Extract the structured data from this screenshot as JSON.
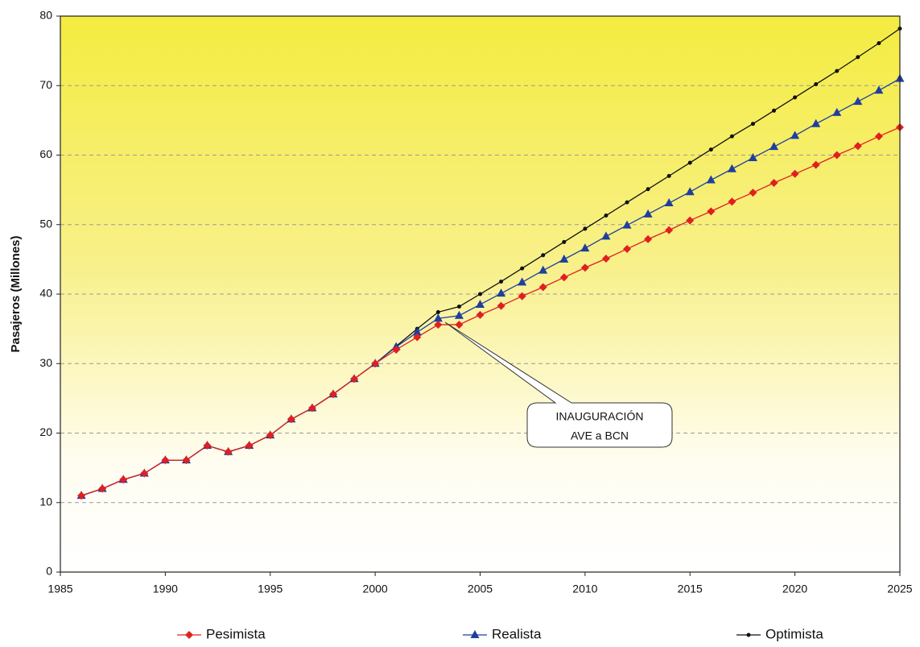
{
  "chart_data": {
    "type": "line",
    "y_label": "Pasajeros (Millones)",
    "annotation": [
      "INAUGURACIÓN",
      "AVE a BCN"
    ],
    "x": [
      1986,
      1987,
      1988,
      1989,
      1990,
      1991,
      1992,
      1993,
      1994,
      1995,
      1996,
      1997,
      1998,
      1999,
      2000,
      2001,
      2002,
      2003,
      2004,
      2005,
      2006,
      2007,
      2008,
      2009,
      2010,
      2011,
      2012,
      2013,
      2014,
      2015,
      2016,
      2017,
      2018,
      2019,
      2020,
      2021,
      2022,
      2023,
      2024,
      2025
    ],
    "xlim": [
      1985,
      2025
    ],
    "xticks": [
      1985,
      1990,
      1995,
      2000,
      2005,
      2010,
      2015,
      2020,
      2025
    ],
    "ylim": [
      0,
      80
    ],
    "yticks": [
      0,
      10,
      20,
      30,
      40,
      50,
      60,
      70,
      80
    ],
    "grid": true,
    "series": [
      {
        "name": "Optimista",
        "color": "#111111",
        "marker": "dot",
        "values": [
          11,
          12,
          13.3,
          14.2,
          16.1,
          16.1,
          18.2,
          17.3,
          18.2,
          19.7,
          22,
          23.6,
          25.6,
          27.8,
          30,
          32.5,
          35,
          37.4,
          38.2,
          40.0,
          41.8,
          43.7,
          45.6,
          47.5,
          49.4,
          51.3,
          53.2,
          55.1,
          57.0,
          58.9,
          60.8,
          62.7,
          64.5,
          66.4,
          68.3,
          70.2,
          72.1,
          74.1,
          76.1,
          78.2
        ]
      },
      {
        "name": "Realista",
        "color": "#1f3f9f",
        "marker": "triangle",
        "values": [
          11,
          12,
          13.3,
          14.2,
          16.1,
          16.1,
          18.2,
          17.3,
          18.2,
          19.7,
          22,
          23.6,
          25.6,
          27.8,
          30,
          32.4,
          34.5,
          36.5,
          36.9,
          38.5,
          40.1,
          41.7,
          43.4,
          45.0,
          46.6,
          48.3,
          49.9,
          51.5,
          53.1,
          54.7,
          56.4,
          58.0,
          59.6,
          61.2,
          62.8,
          64.5,
          66.1,
          67.7,
          69.3,
          71.0
        ]
      },
      {
        "name": "Pesimista",
        "color": "#e02020",
        "marker": "diamond",
        "values": [
          11,
          12,
          13.3,
          14.2,
          16.1,
          16.1,
          18.2,
          17.3,
          18.2,
          19.7,
          22,
          23.6,
          25.6,
          27.8,
          30,
          32,
          33.8,
          35.6,
          35.6,
          37.0,
          38.3,
          39.7,
          41.0,
          42.4,
          43.8,
          45.1,
          46.5,
          47.9,
          49.2,
          50.6,
          51.9,
          53.3,
          54.6,
          56.0,
          57.3,
          58.6,
          60.0,
          61.3,
          62.7,
          64.0
        ]
      }
    ]
  }
}
